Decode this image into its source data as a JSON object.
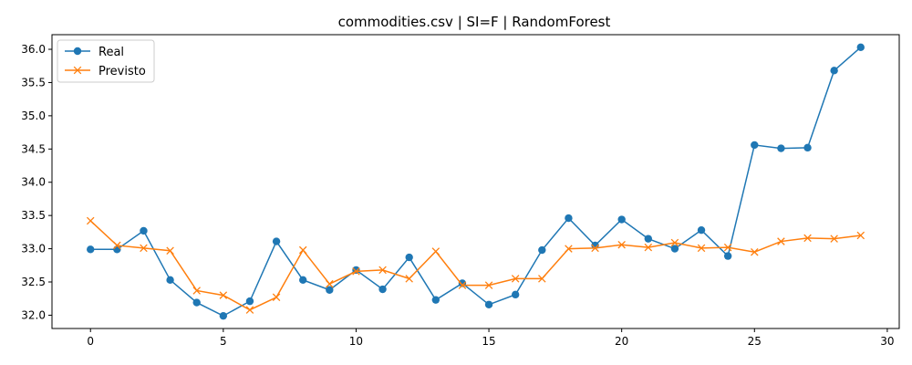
{
  "chart_data": {
    "type": "line",
    "title": "commodities.csv | SI=F | RandomForest",
    "xlabel": "",
    "ylabel": "",
    "xlim": [
      -1.45,
      30.45
    ],
    "ylim": [
      31.8,
      36.22
    ],
    "x_ticks": [
      0,
      5,
      10,
      15,
      20,
      25,
      30
    ],
    "y_ticks": [
      32.0,
      32.5,
      33.0,
      33.5,
      34.0,
      34.5,
      35.0,
      35.5,
      36.0
    ],
    "x_tick_labels": [
      "0",
      "5",
      "10",
      "15",
      "20",
      "25",
      "30"
    ],
    "y_tick_labels": [
      "32.0",
      "32.5",
      "33.0",
      "33.5",
      "34.0",
      "34.5",
      "35.0",
      "35.5",
      "36.0"
    ],
    "grid": false,
    "legend_position": "top-left",
    "x": [
      0,
      1,
      2,
      3,
      4,
      5,
      6,
      7,
      8,
      9,
      10,
      11,
      12,
      13,
      14,
      15,
      16,
      17,
      18,
      19,
      20,
      21,
      22,
      23,
      24,
      25,
      26,
      27,
      28,
      29
    ],
    "series": [
      {
        "name": "Real",
        "color": "#1f77b4",
        "marker": "circle",
        "values": [
          32.99,
          32.99,
          33.27,
          32.53,
          32.19,
          31.99,
          32.21,
          33.11,
          32.53,
          32.38,
          32.68,
          32.39,
          32.87,
          32.23,
          32.48,
          32.16,
          32.31,
          32.98,
          33.46,
          33.05,
          33.44,
          33.15,
          33.0,
          33.28,
          32.89,
          34.56,
          34.51,
          34.52,
          35.68,
          36.03
        ]
      },
      {
        "name": "Previsto",
        "color": "#ff7f0e",
        "marker": "x",
        "values": [
          33.42,
          33.05,
          33.01,
          32.97,
          32.37,
          32.3,
          32.08,
          32.27,
          32.98,
          32.47,
          32.66,
          32.68,
          32.55,
          32.96,
          32.45,
          32.45,
          32.55,
          32.55,
          33.0,
          33.01,
          33.06,
          33.02,
          33.09,
          33.01,
          33.02,
          32.95,
          33.11,
          33.16,
          33.15,
          33.2
        ]
      }
    ]
  }
}
